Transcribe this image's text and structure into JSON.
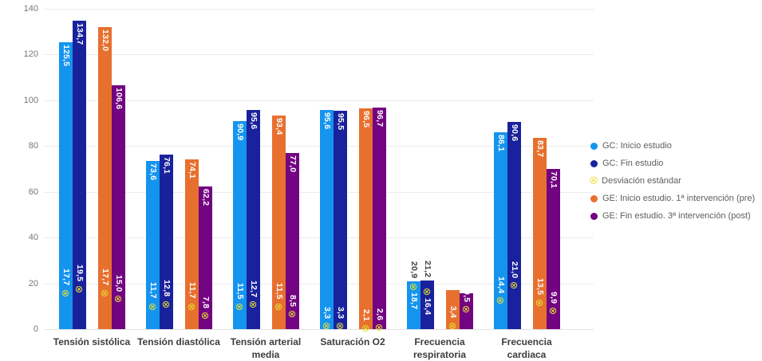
{
  "chart_data": {
    "type": "bar",
    "title": "",
    "xlabel": "",
    "ylabel": "",
    "ylim": [
      0,
      140
    ],
    "yticks": [
      0,
      20,
      40,
      60,
      80,
      100,
      120,
      140
    ],
    "grid": "horizontal",
    "legend_position": "right",
    "decimal_separator": ",",
    "categories": [
      "Tensión sistólica",
      "Tensión diastólica",
      "Tensión arterial media",
      "Saturación O2",
      "Frecuencia respiratoria",
      "Frecuencia cardiaca"
    ],
    "category_lines": [
      [
        "Tensión sistólica"
      ],
      [
        "Tensión diastólica"
      ],
      [
        "Tensión arterial",
        "media"
      ],
      [
        "Saturación O2"
      ],
      [
        "Frecuencia",
        "respiratoria"
      ],
      [
        "Frecuencia",
        "cardiaca"
      ]
    ],
    "sd_series_name": "Desviación estándar",
    "sd_marker_color": "#E4DE33",
    "series": [
      {
        "name": "GC: Inicio estudio",
        "color": "#1494EE",
        "values": [
          125.5,
          73.6,
          90.9,
          95.6,
          20.9,
          86.1
        ],
        "sd": [
          17.7,
          11.7,
          11.5,
          3.3,
          18.7,
          14.4
        ],
        "value_label_outside": [
          4
        ],
        "sd_label_below_marker": [
          4
        ],
        "value_label_hidden": []
      },
      {
        "name": "GC: Fin estudio",
        "color": "#19229C",
        "values": [
          134.7,
          76.1,
          95.6,
          95.5,
          21.2,
          90.6
        ],
        "sd": [
          19.5,
          12.8,
          12.7,
          3.3,
          16.4,
          21.0
        ],
        "value_label_outside": [
          4
        ],
        "sd_label_below_marker": [
          4
        ],
        "value_label_hidden": []
      },
      {
        "name": "GE: Inicio estudio. 1ª intervención (pre)",
        "color": "#E7702E",
        "values": [
          132.0,
          74.1,
          93.4,
          96.5,
          17.1,
          83.7
        ],
        "sd": [
          17.7,
          11.7,
          11.5,
          2.1,
          3.4,
          13.5
        ],
        "value_label_outside": [],
        "sd_label_below_marker": [],
        "value_label_hidden": [
          4
        ]
      },
      {
        "name": "GE: Fin estudio. 3ª intervención (post)",
        "color": "#720381",
        "values": [
          106.6,
          62.2,
          77.0,
          96.7,
          15.5,
          70.1
        ],
        "sd": [
          15.0,
          7.8,
          8.5,
          2.6,
          10.5,
          9.9
        ],
        "value_label_outside": [],
        "sd_label_below_marker": [],
        "value_label_hidden": [
          4
        ]
      }
    ]
  },
  "legend": {
    "items": [
      {
        "label": "GC: Inicio estudio",
        "marker": "circle",
        "color": "#1494EE"
      },
      {
        "label": "GC: Fin estudio",
        "marker": "circle",
        "color": "#19229C"
      },
      {
        "label": "Desviación estándar",
        "marker": "otimes",
        "color": "#EDE45A"
      },
      {
        "label": "GE: Inicio estudio. 1ª intervención (pre)",
        "marker": "circle",
        "color": "#E7702E"
      },
      {
        "label": "GE: Fin estudio. 3ª intervención (post)",
        "marker": "circle",
        "color": "#720381"
      }
    ]
  },
  "colors": {
    "background": "#FFFFFF",
    "gridline": "#ECECEC",
    "axis_text": "#767676",
    "category_text": "#3D3D3D",
    "value_label_inside": "#FFFFFF",
    "value_label_outside": "#404040",
    "legend_text": "#5F5E5C"
  }
}
